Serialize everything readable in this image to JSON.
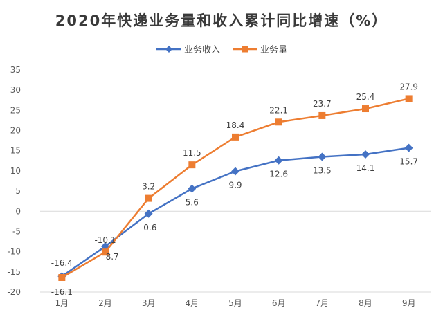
{
  "chart_data": {
    "type": "line",
    "title": "2020年快递业务量和收入累计同比增速（%）",
    "categories": [
      "1月",
      "2月",
      "3月",
      "4月",
      "5月",
      "6月",
      "7月",
      "8月",
      "9月"
    ],
    "ylim": [
      -20,
      35
    ],
    "yticks": [
      35,
      30,
      25,
      20,
      15,
      10,
      5,
      0,
      -5,
      -10,
      -15,
      -20
    ],
    "grid": false,
    "legend": "top-center",
    "series": [
      {
        "name": "业务收入",
        "color": "#4472C4",
        "marker": "diamond",
        "values": [
          -16.1,
          -8.7,
          -0.6,
          5.6,
          9.9,
          12.6,
          13.5,
          14.1,
          15.7
        ],
        "labels": [
          "-16.1",
          "-8.7",
          "-0.6",
          "5.6",
          "9.9",
          "12.6",
          "13.5",
          "14.1",
          "15.7"
        ]
      },
      {
        "name": "业务量",
        "color": "#ED7D31",
        "marker": "square",
        "values": [
          -16.4,
          -10.1,
          3.2,
          11.5,
          18.4,
          22.1,
          23.7,
          25.4,
          27.9
        ],
        "labels": [
          "-16.4",
          "-10.1",
          "3.2",
          "11.5",
          "18.4",
          "22.1",
          "23.7",
          "25.4",
          "27.9"
        ]
      }
    ]
  }
}
